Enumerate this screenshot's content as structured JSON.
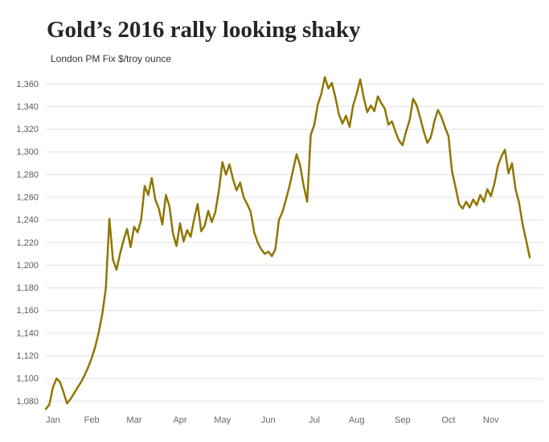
{
  "header": {
    "title": "Gold’s 2016 rally looking shaky",
    "subtitle": "London PM Fix $/troy ounce"
  },
  "chart_data": {
    "type": "line",
    "title": "Gold’s 2016 rally looking shaky",
    "ylabel": "London PM Fix $/troy ounce",
    "xlabel": "",
    "series_name": "Gold price, London PM Fix ($/troy ounce), 2016",
    "line_color": "#8f7600",
    "grid_color": "#e2e2e2",
    "grid": "horizontal",
    "legend": "none",
    "months": [
      "Jan",
      "Feb",
      "Mar",
      "Apr",
      "May",
      "Jun",
      "Jul",
      "Aug",
      "Sep",
      "Oct",
      "Nov"
    ],
    "month_start_index": [
      0,
      13,
      25,
      38,
      50,
      63,
      76,
      88,
      101,
      114,
      126
    ],
    "yticks": [
      1080,
      1100,
      1120,
      1140,
      1160,
      1180,
      1200,
      1220,
      1240,
      1260,
      1280,
      1300,
      1320,
      1340,
      1360
    ],
    "ylim": [
      1066,
      1368
    ],
    "values": [
      1073,
      1077,
      1092,
      1100,
      1097,
      1088,
      1078,
      1082,
      1087,
      1092,
      1097,
      1103,
      1110,
      1118,
      1128,
      1141,
      1157,
      1180,
      1241,
      1205,
      1196,
      1210,
      1222,
      1232,
      1216,
      1234,
      1229,
      1240,
      1270,
      1262,
      1277,
      1258,
      1250,
      1236,
      1262,
      1252,
      1228,
      1217,
      1237,
      1221,
      1231,
      1225,
      1241,
      1254,
      1230,
      1235,
      1248,
      1238,
      1247,
      1266,
      1291,
      1280,
      1289,
      1276,
      1266,
      1273,
      1260,
      1254,
      1247,
      1229,
      1220,
      1214,
      1210,
      1212,
      1208,
      1214,
      1240,
      1247,
      1258,
      1270,
      1284,
      1298,
      1288,
      1270,
      1256,
      1315,
      1324,
      1342,
      1351,
      1366,
      1356,
      1361,
      1348,
      1333,
      1325,
      1332,
      1322,
      1341,
      1351,
      1364,
      1348,
      1335,
      1341,
      1336,
      1349,
      1343,
      1338,
      1324,
      1327,
      1318,
      1310,
      1306,
      1318,
      1328,
      1347,
      1341,
      1330,
      1318,
      1308,
      1313,
      1327,
      1337,
      1331,
      1322,
      1314,
      1283,
      1269,
      1254,
      1250,
      1256,
      1251,
      1258,
      1253,
      1262,
      1256,
      1267,
      1261,
      1272,
      1288,
      1296,
      1302,
      1281,
      1290,
      1267,
      1255,
      1236,
      1222,
      1207
    ]
  }
}
